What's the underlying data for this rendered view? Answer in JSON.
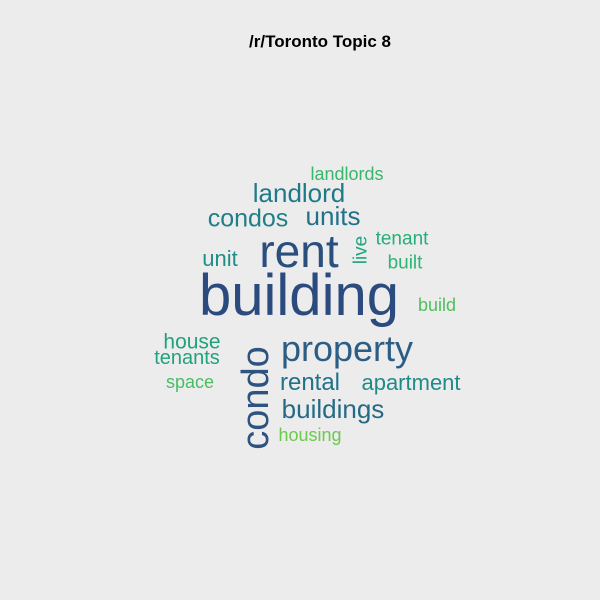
{
  "title": "/r/Toronto Topic 8",
  "words": [
    {
      "text": "building",
      "weight": 1.0,
      "color": "#2b4a7e",
      "vertical": false
    },
    {
      "text": "rent",
      "weight": 0.78,
      "color": "#2a4f7f",
      "vertical": false
    },
    {
      "text": "condo",
      "weight": 0.62,
      "color": "#2e5381",
      "vertical": true
    },
    {
      "text": "property",
      "weight": 0.58,
      "color": "#2c5d84",
      "vertical": false
    },
    {
      "text": "buildings",
      "weight": 0.45,
      "color": "#266985",
      "vertical": false
    },
    {
      "text": "rental",
      "weight": 0.42,
      "color": "#22718a",
      "vertical": false
    },
    {
      "text": "units",
      "weight": 0.42,
      "color": "#22718a",
      "vertical": false
    },
    {
      "text": "landlord",
      "weight": 0.42,
      "color": "#1f7a88",
      "vertical": false
    },
    {
      "text": "condos",
      "weight": 0.4,
      "color": "#1f7e88",
      "vertical": false
    },
    {
      "text": "apartment",
      "weight": 0.38,
      "color": "#1f8b87",
      "vertical": false
    },
    {
      "text": "unit",
      "weight": 0.36,
      "color": "#1f8e86",
      "vertical": false
    },
    {
      "text": "house",
      "weight": 0.34,
      "color": "#22a17f",
      "vertical": false
    },
    {
      "text": "tenants",
      "weight": 0.32,
      "color": "#22a17f",
      "vertical": false
    },
    {
      "text": "live",
      "weight": 0.32,
      "color": "#23a27f",
      "vertical": true
    },
    {
      "text": "tenant",
      "weight": 0.3,
      "color": "#27ad7a",
      "vertical": false
    },
    {
      "text": "built",
      "weight": 0.3,
      "color": "#2db574",
      "vertical": false
    },
    {
      "text": "landlords",
      "weight": 0.28,
      "color": "#3ab56c",
      "vertical": false
    },
    {
      "text": "build",
      "weight": 0.28,
      "color": "#4dc05e",
      "vertical": false
    },
    {
      "text": "space",
      "weight": 0.27,
      "color": "#48bd62",
      "vertical": false
    },
    {
      "text": "housing",
      "weight": 0.27,
      "color": "#6cc94f",
      "vertical": false
    }
  ]
}
